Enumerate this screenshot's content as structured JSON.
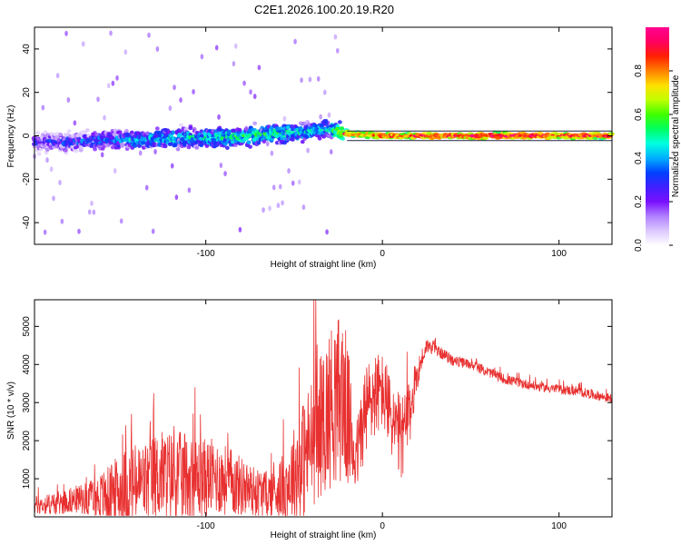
{
  "chart_data": [
    {
      "type": "heatmap",
      "title": "C2E1.2026.100.20.19.R20",
      "xlabel": "Height of straight line (km)",
      "ylabel": "Frequency (Hz)",
      "xlim": [
        -197,
        130
      ],
      "ylim": [
        -50,
        50
      ],
      "xticks": [
        -100,
        0,
        100
      ],
      "xtick_labels": [
        "-100",
        "0",
        "100"
      ],
      "yticks": [
        -40,
        -20,
        0,
        20,
        40
      ],
      "ytick_labels": [
        "-40",
        "-20",
        "0",
        "20",
        "40"
      ],
      "colorbar": {
        "label": "Normalized spectral amplitude",
        "range": [
          0,
          1
        ],
        "ticks": [
          0,
          0.2,
          0.4,
          0.6,
          0.8
        ],
        "tick_labels": [
          "0.0",
          "0.2",
          "0.4",
          "0.6",
          "0.8"
        ],
        "colors": [
          "#ffffff",
          "#dcc8ff",
          "#b080ff",
          "#7a10ff",
          "#4020ff",
          "#0040ff",
          "#00b0ff",
          "#00ffe0",
          "#00ff60",
          "#40ff00",
          "#c0ff00",
          "#ffe000",
          "#ff8000",
          "#ff2000",
          "#ff0060",
          "#ff0090"
        ]
      },
      "ridge": {
        "x": [
          -197,
          -180,
          -160,
          -140,
          -120,
          -100,
          -80,
          -60,
          -40,
          -30,
          -22,
          -20,
          0,
          20,
          40,
          60,
          80,
          100,
          130
        ],
        "freq": [
          -3,
          -3,
          -2,
          -2,
          -1,
          -1,
          0,
          1,
          2,
          3,
          1,
          1,
          0,
          0,
          0,
          0,
          0,
          0,
          0
        ],
        "amplitude": [
          0.25,
          0.3,
          0.35,
          0.4,
          0.45,
          0.45,
          0.5,
          0.5,
          0.45,
          0.45,
          0.7,
          0.85,
          0.85,
          0.9,
          0.9,
          0.95,
          0.95,
          0.9,
          0.9
        ]
      }
    },
    {
      "type": "line",
      "xlabel": "Height of straight line (km)",
      "ylabel": "SNR (10 * v/v)",
      "xlim": [
        -197,
        130
      ],
      "ylim": [
        0,
        5700
      ],
      "xticks": [
        -100,
        0,
        100
      ],
      "xtick_labels": [
        "-100",
        "0",
        "100"
      ],
      "yticks": [
        1000,
        2000,
        3000,
        4000,
        5000
      ],
      "ytick_labels": [
        "1000",
        "2000",
        "3000",
        "4000",
        "5000"
      ],
      "series": [
        {
          "name": "SNR",
          "color": "#e83030",
          "x": [
            -197,
            -185,
            -175,
            -165,
            -155,
            -145,
            -135,
            -125,
            -115,
            -105,
            -95,
            -85,
            -75,
            -65,
            -55,
            -45,
            -35,
            -28,
            -22,
            -18,
            -15,
            -10,
            -5,
            0,
            5,
            10,
            15,
            20,
            25,
            30,
            40,
            50,
            60,
            70,
            80,
            90,
            100,
            110,
            120,
            130
          ],
          "y": [
            300,
            350,
            450,
            500,
            550,
            750,
            900,
            1100,
            1050,
            1000,
            1050,
            900,
            700,
            600,
            800,
            1500,
            2400,
            3000,
            3200,
            2200,
            1500,
            2700,
            3200,
            3300,
            2600,
            2000,
            2600,
            3800,
            4500,
            4400,
            4100,
            4000,
            3800,
            3600,
            3500,
            3400,
            3350,
            3300,
            3200,
            3100
          ],
          "spread": [
            250,
            300,
            350,
            450,
            800,
            1100,
            1100,
            1200,
            1200,
            1100,
            1000,
            900,
            700,
            600,
            900,
            1600,
            1900,
            2200,
            2300,
            1600,
            900,
            1300,
            1200,
            1000,
            1000,
            1200,
            900,
            400,
            200,
            150,
            150,
            130,
            130,
            130,
            130,
            120,
            120,
            130,
            130,
            120
          ]
        }
      ]
    }
  ]
}
